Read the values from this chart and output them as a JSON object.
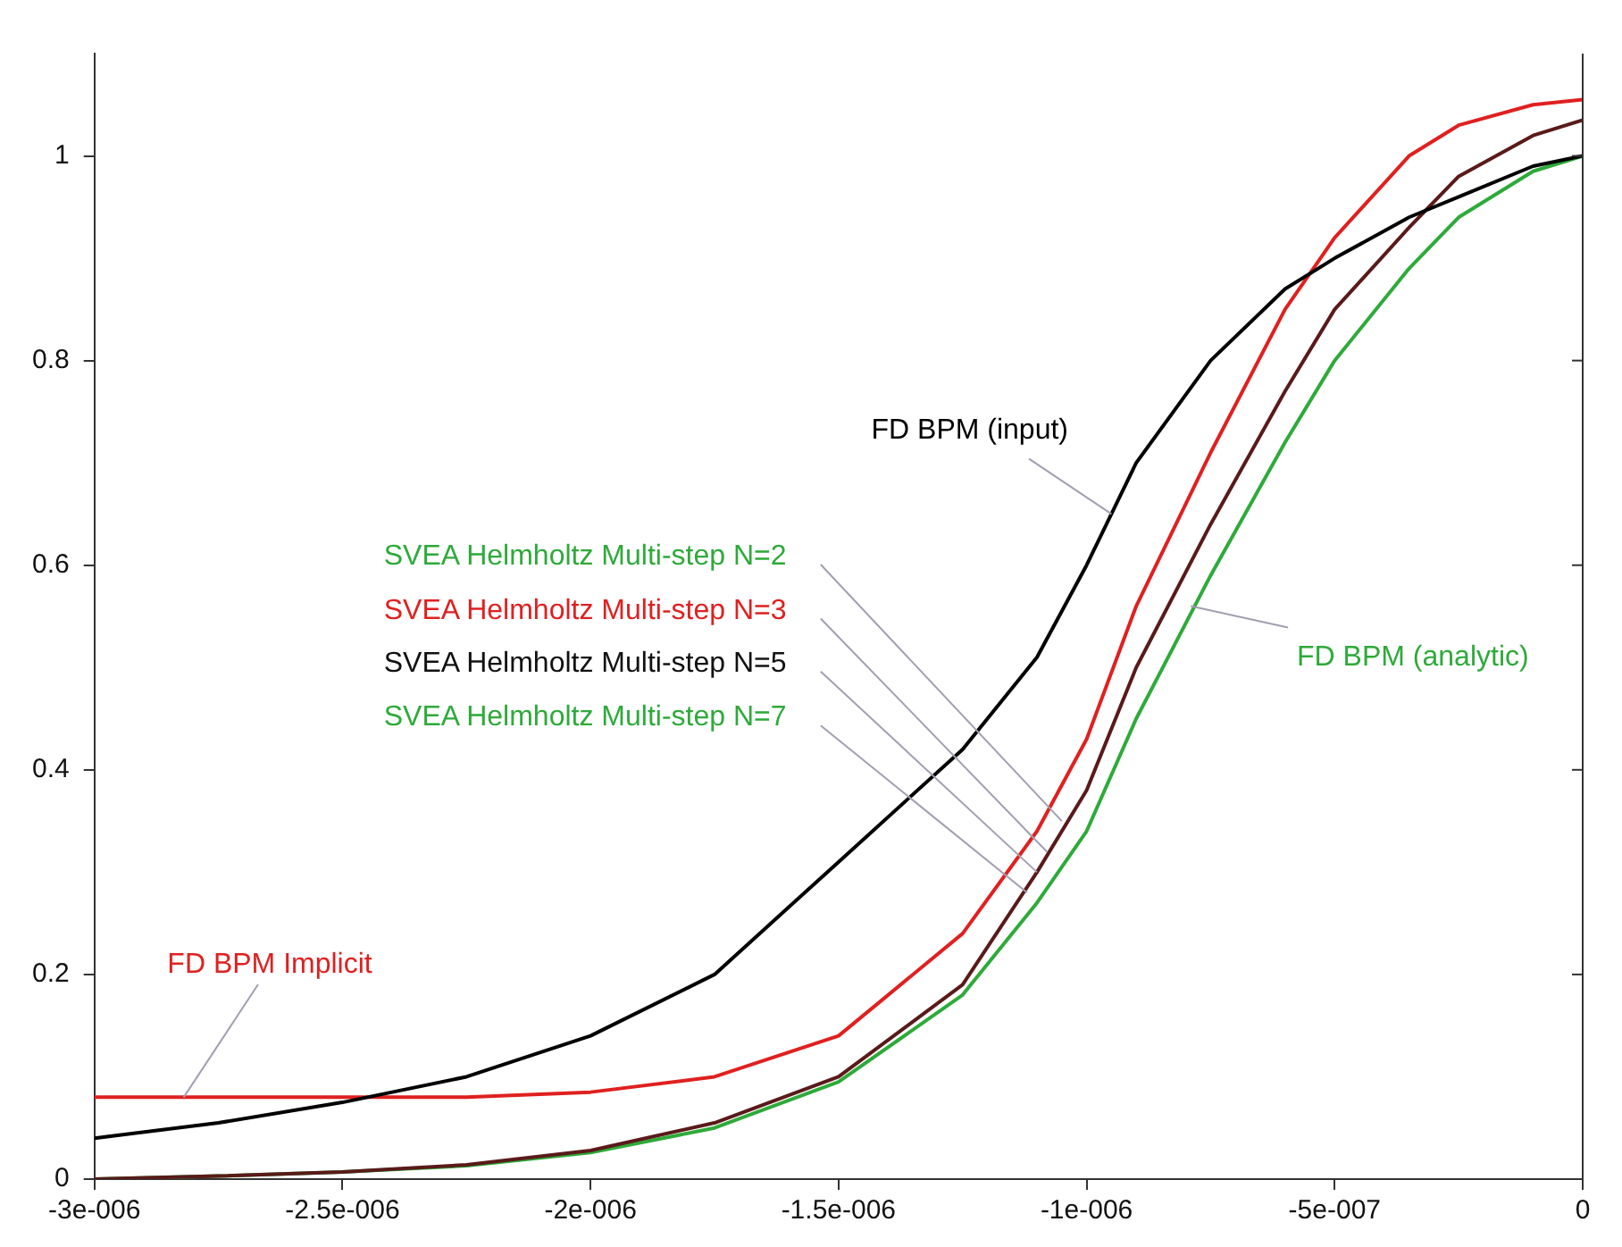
{
  "chart_data": {
    "type": "line",
    "x": [
      -3e-06,
      -2.75e-06,
      -2.5e-06,
      -2.25e-06,
      -2e-06,
      -1.75e-06,
      -1.5e-06,
      -1.25e-06,
      -1.1e-06,
      -1e-06,
      -9e-07,
      -7.5e-07,
      -6e-07,
      -5e-07,
      -3.5e-07,
      -2.5e-07,
      -1e-07,
      0
    ],
    "series": [
      {
        "color": "#000000",
        "values": [
          0.04,
          0.055,
          0.075,
          0.1,
          0.14,
          0.2,
          0.31,
          0.42,
          0.51,
          0.6,
          0.7,
          0.8,
          0.87,
          0.9,
          0.94,
          0.96,
          0.99,
          1.0
        ]
      },
      {
        "color": "#e02020",
        "values": [
          0.08,
          0.08,
          0.08,
          0.08,
          0.085,
          0.1,
          0.14,
          0.24,
          0.34,
          0.43,
          0.56,
          0.71,
          0.85,
          0.92,
          1.0,
          1.03,
          1.05,
          1.055
        ]
      },
      {
        "color": "#5a1a1a",
        "values": [
          0,
          0.003,
          0.007,
          0.014,
          0.028,
          0.055,
          0.1,
          0.19,
          0.3,
          0.38,
          0.5,
          0.64,
          0.77,
          0.85,
          0.93,
          0.98,
          1.02,
          1.035
        ]
      },
      {
        "color": "#2eaa3a",
        "values": [
          0,
          0.003,
          0.007,
          0.013,
          0.026,
          0.05,
          0.095,
          0.18,
          0.27,
          0.34,
          0.45,
          0.59,
          0.72,
          0.8,
          0.89,
          0.94,
          0.985,
          1.0
        ]
      }
    ],
    "xlim": [
      -3e-06,
      0
    ],
    "xticks": [
      {
        "value": -3e-06,
        "label": "-3e-006"
      },
      {
        "value": -2.5e-06,
        "label": "-2.5e-006"
      },
      {
        "value": -2e-06,
        "label": "-2e-006"
      },
      {
        "value": -1.5e-06,
        "label": "-1.5e-006"
      },
      {
        "value": -1e-06,
        "label": "-1e-006"
      },
      {
        "value": -5e-07,
        "label": "-5e-007"
      },
      0
    ],
    "ylim": [
      0,
      1.1
    ],
    "yticks": [
      0,
      0.2,
      0.4,
      0.6,
      0.8,
      1
    ],
    "grid": false,
    "legend": false,
    "marker": "none",
    "line_style": "solid",
    "annotations": [
      {
        "text": "FD BPM (input)",
        "x": -9.5e-07,
        "y": 0.65
      },
      {
        "text": "FD BPM (analytic)",
        "x": -7.9e-07,
        "y": 0.56
      },
      {
        "text": "SVEA Helmholtz Multi-step N=2",
        "x": -1.05e-06,
        "y": 0.35
      },
      {
        "text": "SVEA Helmholtz Multi-step N=3",
        "x": -1.08e-06,
        "y": 0.32
      },
      {
        "text": "SVEA Helmholtz Multi-step N=5",
        "x": -1.1e-06,
        "y": 0.3
      },
      {
        "text": "SVEA Helmholtz Multi-step N=7",
        "x": -1.12e-06,
        "y": 0.28
      },
      {
        "text": "FD BPM Implicit",
        "x": -2.82e-06,
        "y": 0.08
      }
    ]
  }
}
